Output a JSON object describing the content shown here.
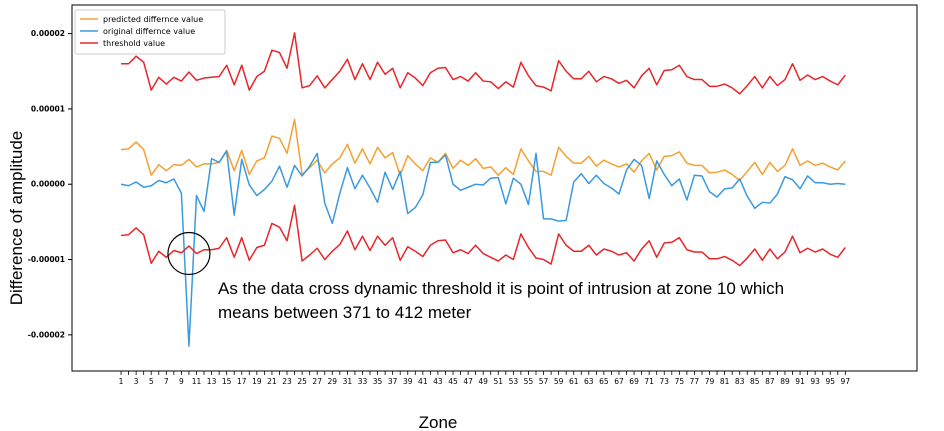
{
  "chart_data": {
    "type": "line",
    "xlabel": "Zone",
    "ylabel": "Difference of amplitude",
    "x": [
      1,
      2,
      3,
      4,
      5,
      6,
      7,
      8,
      9,
      10,
      11,
      12,
      13,
      14,
      15,
      16,
      17,
      18,
      19,
      20,
      21,
      22,
      23,
      24,
      25,
      26,
      27,
      28,
      29,
      30,
      31,
      32,
      33,
      34,
      35,
      36,
      37,
      38,
      39,
      40,
      41,
      42,
      43,
      44,
      45,
      46,
      47,
      48,
      49,
      50,
      51,
      52,
      53,
      54,
      55,
      56,
      57,
      58,
      59,
      60,
      61,
      62,
      63,
      64,
      65,
      66,
      67,
      68,
      69,
      70,
      71,
      72,
      73,
      74,
      75,
      76,
      77,
      78,
      79,
      80,
      81,
      82,
      83,
      84,
      85,
      86,
      87,
      88,
      89,
      90,
      91,
      92,
      93,
      94,
      95,
      96,
      97
    ],
    "xticks": [
      "1",
      "3",
      "5",
      "7",
      "9",
      "11",
      "13",
      "15",
      "17",
      "19",
      "21",
      "23",
      "25",
      "27",
      "29",
      "31",
      "33",
      "35",
      "37",
      "39",
      "41",
      "43",
      "45",
      "47",
      "49",
      "51",
      "53",
      "55",
      "57",
      "59",
      "61",
      "63",
      "65",
      "67",
      "69",
      "71",
      "73",
      "75",
      "77",
      "79",
      "81",
      "83",
      "85",
      "87",
      "89",
      "91",
      "93",
      "95",
      "97"
    ],
    "xlim": [
      -5.5,
      106.5
    ],
    "yticks": [
      {
        "value": 2e-05,
        "label": "0.00002"
      },
      {
        "value": 1e-05,
        "label": "0.00001"
      },
      {
        "value": 0.0,
        "label": "0.00000"
      },
      {
        "value": -1e-05,
        "label": "-0.00001"
      },
      {
        "value": -2e-05,
        "label": "-0.00002"
      }
    ],
    "ylim": [
      -2.48e-05,
      2.38e-05
    ],
    "grid": false,
    "legend_position": "top-left",
    "series": [
      {
        "name": "predicted differnce value",
        "color": "#f5a030",
        "values": [
          4.6e-06,
          4.7e-06,
          5.6e-06,
          4.6e-06,
          1.2e-06,
          2.6e-06,
          1.8e-06,
          2.6e-06,
          2.5e-06,
          3.3e-06,
          2.3e-06,
          2.7e-06,
          2.7e-06,
          2.9e-06,
          4.5e-06,
          1.8e-06,
          4.5e-06,
          1.3e-06,
          3.1e-06,
          3.5e-06,
          6.4e-06,
          6.1e-06,
          4.1e-06,
          8.6e-06,
          1.3e-06,
          2.2e-06,
          3.2e-06,
          1.5e-06,
          2.7e-06,
          3.5e-06,
          5.3e-06,
          2.8e-06,
          4.7e-06,
          2.7e-06,
          4.9e-06,
          3.5e-06,
          4.2e-06,
          1.2e-06,
          3.8e-06,
          2.7e-06,
          1.8e-06,
          3.5e-06,
          2.9e-06,
          4.1e-06,
          2.1e-06,
          3.2e-06,
          2.5e-06,
          3.4e-06,
          2.1e-06,
          2.3e-06,
          1.2e-06,
          2.2e-06,
          1.3e-06,
          4.7e-06,
          3.1e-06,
          1.7e-06,
          1.7e-06,
          1.2e-06,
          4.9e-06,
          3.7e-06,
          2.8e-06,
          2.8e-06,
          3.7e-06,
          2.4e-06,
          3.2e-06,
          2.7e-06,
          2.3e-06,
          2.7e-06,
          1.6e-06,
          3.1e-06,
          4.1e-06,
          1.9e-06,
          3.7e-06,
          3.8e-06,
          4.3e-06,
          2.8e-06,
          2.5e-06,
          2.5e-06,
          1.5e-06,
          1.6e-06,
          1.9e-06,
          1.3e-06,
          5e-07,
          1.7e-06,
          2.9e-06,
          1.3e-06,
          2.9e-06,
          1.7e-06,
          2.5e-06,
          4.7e-06,
          2.5e-06,
          3.1e-06,
          2.5e-06,
          2.8e-06,
          2.3e-06,
          1.9e-06,
          3.1e-06
        ]
      },
      {
        "name": "original differnce value",
        "color": "#3b99e0",
        "values": [
          0.0,
          -2e-07,
          3e-07,
          -4e-07,
          -2e-07,
          5e-07,
          2e-07,
          7e-07,
          -1.2e-06,
          -2.15e-05,
          -1.5e-06,
          -3.6e-06,
          3.4e-06,
          2.9e-06,
          4.4e-06,
          -4.1e-06,
          3.3e-06,
          -1e-07,
          -1.5e-06,
          -7e-07,
          4e-07,
          2.4e-06,
          -4e-07,
          2.5e-06,
          1.1e-06,
          2.4e-06,
          4.1e-06,
          -2.5e-06,
          -5.2e-06,
          -1.2e-06,
          2.2e-06,
          -6e-07,
          1.2e-06,
          -5e-07,
          -2.4e-06,
          1.6e-06,
          -7e-07,
          1.7e-06,
          -3.9e-06,
          -3.1e-06,
          -1.4e-06,
          2.9e-06,
          2.9e-06,
          3.9e-06,
          0.0,
          -8e-07,
          -4e-07,
          0.0,
          -1e-07,
          8e-07,
          9e-07,
          -2.6e-06,
          8e-07,
          0.0,
          -2.7e-06,
          4.1e-06,
          -4.6e-06,
          -4.6e-06,
          -4.9e-06,
          -4.8e-06,
          3e-07,
          1.4e-06,
          1e-07,
          1.2e-06,
          1e-07,
          -5e-07,
          -1.3e-06,
          1.9e-06,
          3.3e-06,
          2.5e-06,
          -1.9e-06,
          3.1e-06,
          1.3e-06,
          -2e-07,
          7e-07,
          -2.1e-06,
          1.2e-06,
          1.1e-06,
          -1e-06,
          -1.7e-06,
          -6e-07,
          -5e-07,
          7e-07,
          -1.6e-06,
          -3.2e-06,
          -2.4e-06,
          -2.5e-06,
          -1.3e-06,
          1e-06,
          6e-07,
          -6e-07,
          1.1e-06,
          2e-07,
          2e-07,
          0.0,
          1e-07,
          0.0
        ]
      },
      {
        "name": "threshold value",
        "color": "#e8262a",
        "values": [
          1.6e-05,
          1.6e-05,
          1.7e-05,
          1.62e-05,
          1.25e-05,
          1.42e-05,
          1.33e-05,
          1.42e-05,
          1.37e-05,
          1.49e-05,
          1.38e-05,
          1.41e-05,
          1.42e-05,
          1.43e-05,
          1.58e-05,
          1.32e-05,
          1.58e-05,
          1.25e-05,
          1.43e-05,
          1.5e-05,
          1.78e-05,
          1.75e-05,
          1.54e-05,
          2.01e-05,
          1.28e-05,
          1.31e-05,
          1.44e-05,
          1.28e-05,
          1.39e-05,
          1.5e-05,
          1.66e-05,
          1.39e-05,
          1.6e-05,
          1.39e-05,
          1.62e-05,
          1.46e-05,
          1.54e-05,
          1.28e-05,
          1.48e-05,
          1.41e-05,
          1.31e-05,
          1.48e-05,
          1.54e-05,
          1.55e-05,
          1.39e-05,
          1.43e-05,
          1.37e-05,
          1.48e-05,
          1.37e-05,
          1.36e-05,
          1.27e-05,
          1.36e-05,
          1.29e-05,
          1.62e-05,
          1.44e-05,
          1.31e-05,
          1.29e-05,
          1.24e-05,
          1.64e-05,
          1.5e-05,
          1.4e-05,
          1.4e-05,
          1.5e-05,
          1.36e-05,
          1.43e-05,
          1.4e-05,
          1.34e-05,
          1.38e-05,
          1.28e-05,
          1.44e-05,
          1.54e-05,
          1.32e-05,
          1.51e-05,
          1.52e-05,
          1.58e-05,
          1.43e-05,
          1.39e-05,
          1.39e-05,
          1.3e-05,
          1.3e-05,
          1.33e-05,
          1.28e-05,
          1.2e-05,
          1.31e-05,
          1.43e-05,
          1.28e-05,
          1.43e-05,
          1.31e-05,
          1.39e-05,
          1.6e-05,
          1.38e-05,
          1.45e-05,
          1.39e-05,
          1.43e-05,
          1.37e-05,
          1.32e-05,
          1.45e-05
        ]
      },
      {
        "name": "",
        "color": "#e8262a",
        "legend": false,
        "values": [
          -6.8e-06,
          -6.7e-06,
          -5.8e-06,
          -6.7e-06,
          -1.05e-05,
          -8.9e-06,
          -9.7e-06,
          -8.8e-06,
          -9.1e-06,
          -8.2e-06,
          -9.2e-06,
          -8.7e-06,
          -8.7e-06,
          -8.5e-06,
          -7.1e-06,
          -9.7e-06,
          -7.1e-06,
          -1.01e-05,
          -8.4e-06,
          -8.1e-06,
          -5.2e-06,
          -5.7e-06,
          -7.5e-06,
          -2.8e-06,
          -1.02e-05,
          -9.4e-06,
          -8.5e-06,
          -1e-05,
          -8.9e-06,
          -8e-06,
          -6.2e-06,
          -8.7e-06,
          -6.9e-06,
          -8.8e-06,
          -6.9e-06,
          -8.1e-06,
          -7.1e-06,
          -1.01e-05,
          -8.3e-06,
          -8.9e-06,
          -9.6e-06,
          -8.1e-06,
          -7.5e-06,
          -7.4e-06,
          -9.1e-06,
          -8.7e-06,
          -9.2e-06,
          -8.1e-06,
          -9.2e-06,
          -9.7e-06,
          -1.02e-05,
          -9.4e-06,
          -1e-05,
          -6.6e-06,
          -8.4e-06,
          -9.8e-06,
          -1e-05,
          -1.06e-05,
          -6.6e-06,
          -8.1e-06,
          -8.9e-06,
          -8.9e-06,
          -8.1e-06,
          -9.4e-06,
          -8.6e-06,
          -8.9e-06,
          -9.4e-06,
          -9.1e-06,
          -1.02e-05,
          -8.6e-06,
          -7.5e-06,
          -9.7e-06,
          -7.8e-06,
          -7.7e-06,
          -7.1e-06,
          -8.7e-06,
          -9e-06,
          -9e-06,
          -9.9e-06,
          -9.9e-06,
          -9.6e-06,
          -1.01e-05,
          -1.08e-05,
          -9.8e-06,
          -8.6e-06,
          -1.01e-05,
          -8.6e-06,
          -9.9e-06,
          -9e-06,
          -6.9e-06,
          -9.1e-06,
          -8.5e-06,
          -9e-06,
          -8.6e-06,
          -9.3e-06,
          -9.7e-06,
          -8.4e-06
        ]
      }
    ],
    "annotation": {
      "text_line1": "As the data cross dynamic threshold it is point of intrusion at zone 10 which",
      "text_line2": "means between 371 to 412 meter",
      "circle_center": {
        "x": 10,
        "y": -9.2e-06
      }
    }
  }
}
